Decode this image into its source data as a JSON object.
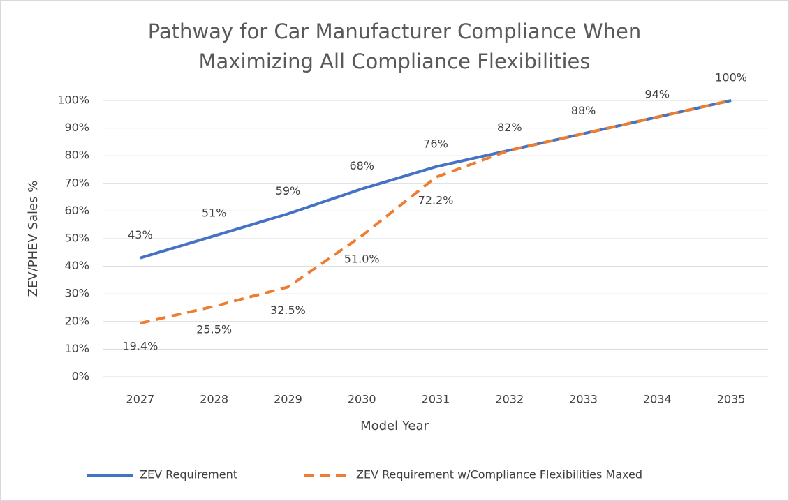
{
  "chart_data": {
    "type": "line",
    "title": [
      "Pathway for Car Manufacturer Compliance When",
      "Maximizing All Compliance Flexibilities"
    ],
    "x_label": "Model Year",
    "y_label": "ZEV/PHEV Sales %",
    "categories": [
      "2027",
      "2028",
      "2029",
      "2030",
      "2031",
      "2032",
      "2033",
      "2034",
      "2035"
    ],
    "series": [
      {
        "name": "ZEV Requirement",
        "color": "#4472c4",
        "dashed": false,
        "values": [
          43,
          51,
          59,
          68,
          76,
          82,
          88,
          94,
          100
        ],
        "value_labels": [
          "43%",
          "51%",
          "59%",
          "68%",
          "76%",
          "82%",
          "88%",
          "94%",
          "100%"
        ]
      },
      {
        "name": "ZEV Requirement w/Compliance Flexibilities Maxed",
        "color": "#ed7d31",
        "dashed": true,
        "values": [
          19.4,
          25.5,
          32.5,
          51.0,
          72.2,
          82,
          88,
          94,
          100
        ],
        "value_labels": [
          "19.4%",
          "25.5%",
          "32.5%",
          "51.0%",
          "72.2%",
          null,
          null,
          null,
          null
        ]
      }
    ],
    "ylim": [
      0,
      100
    ],
    "yticks": [
      {
        "value": 0,
        "label": "0%"
      },
      {
        "value": 10,
        "label": "10%"
      },
      {
        "value": 20,
        "label": "20%"
      },
      {
        "value": 30,
        "label": "30%"
      },
      {
        "value": 40,
        "label": "40%"
      },
      {
        "value": 50,
        "label": "50%"
      },
      {
        "value": 60,
        "label": "60%"
      },
      {
        "value": 70,
        "label": "70%"
      },
      {
        "value": 80,
        "label": "80%"
      },
      {
        "value": 90,
        "label": "90%"
      },
      {
        "value": 100,
        "label": "100%"
      }
    ],
    "grid": true,
    "legend": "bottom"
  }
}
